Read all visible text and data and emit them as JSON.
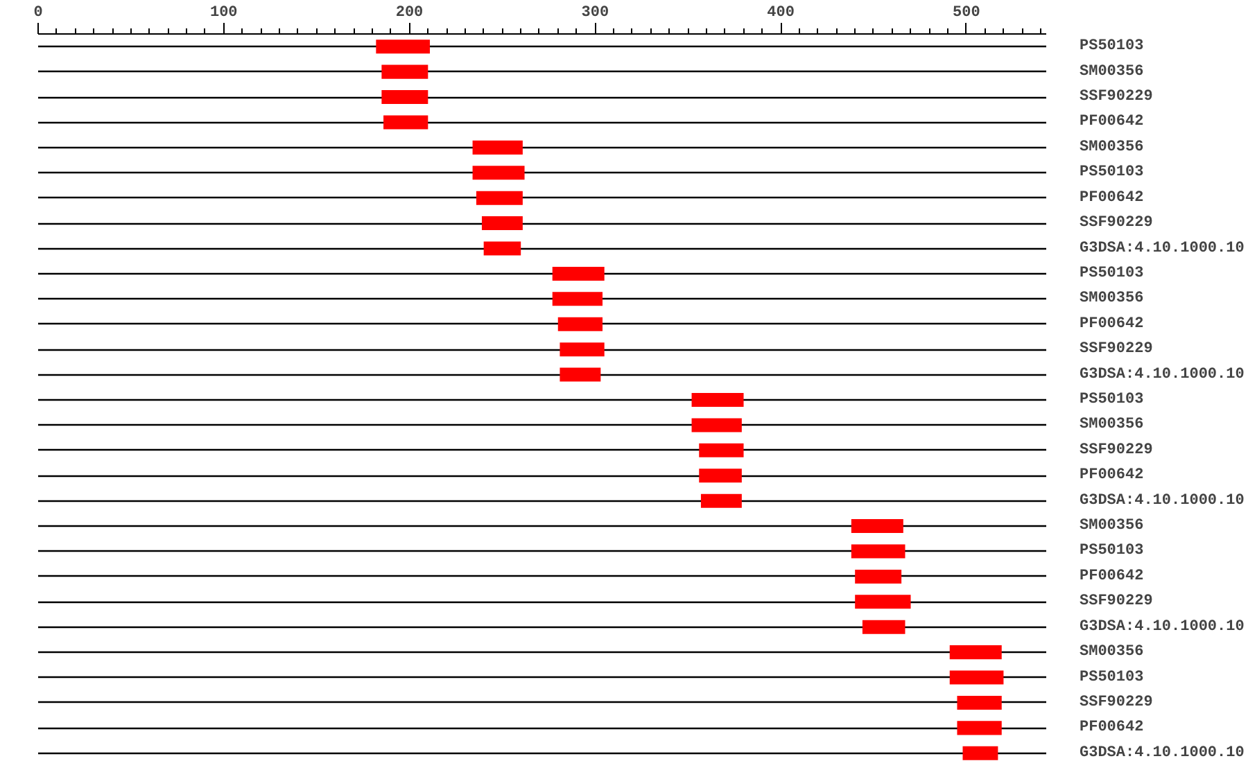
{
  "chart_data": {
    "type": "bar",
    "orientation": "horizontal",
    "grid": "y",
    "categories": [
      "PS50103",
      "SM00356",
      "SSF90229",
      "PF00642",
      "SM00356",
      "PS50103",
      "PF00642",
      "SSF90229",
      "G3DSA:4.10.1000.10",
      "PS50103",
      "SM00356",
      "PF00642",
      "SSF90229",
      "G3DSA:4.10.1000.10",
      "PS50103",
      "SM00356",
      "SSF90229",
      "PF00642",
      "G3DSA:4.10.1000.10",
      "SM00356",
      "PS50103",
      "PF00642",
      "SSF90229",
      "G3DSA:4.10.1000.10",
      "SM00356",
      "PS50103",
      "SSF90229",
      "PF00642",
      "G3DSA:4.10.1000.10"
    ],
    "base": [
      182,
      185,
      185,
      186,
      234,
      234,
      236,
      239,
      240,
      277,
      277,
      280,
      281,
      281,
      352,
      352,
      356,
      356,
      357,
      438,
      438,
      440,
      440,
      444,
      491,
      491,
      495,
      495,
      498
    ],
    "values": [
      29,
      25,
      25,
      24,
      27,
      28,
      25,
      22,
      20,
      28,
      27,
      24,
      24,
      22,
      28,
      27,
      24,
      23,
      22,
      28,
      29,
      25,
      30,
      23,
      28,
      29,
      24,
      24,
      19
    ],
    "color": "#ff0000",
    "xlim": [
      0,
      543
    ],
    "xticks": [
      0,
      {
        "value": 10,
        "label": null
      },
      {
        "value": 20,
        "label": null
      },
      {
        "value": 30,
        "label": null
      },
      {
        "value": 40,
        "label": null
      },
      {
        "value": 50,
        "label": null
      },
      {
        "value": 60,
        "label": null
      },
      {
        "value": 70,
        "label": null
      },
      {
        "value": 80,
        "label": null
      },
      {
        "value": 90,
        "label": null
      },
      100,
      {
        "value": 110,
        "label": null
      },
      {
        "value": 120,
        "label": null
      },
      {
        "value": 130,
        "label": null
      },
      {
        "value": 140,
        "label": null
      },
      {
        "value": 150,
        "label": null
      },
      {
        "value": 160,
        "label": null
      },
      {
        "value": 170,
        "label": null
      },
      {
        "value": 180,
        "label": null
      },
      {
        "value": 190,
        "label": null
      },
      200,
      {
        "value": 210,
        "label": null
      },
      {
        "value": 220,
        "label": null
      },
      {
        "value": 230,
        "label": null
      },
      {
        "value": 240,
        "label": null
      },
      {
        "value": 250,
        "label": null
      },
      {
        "value": 260,
        "label": null
      },
      {
        "value": 270,
        "label": null
      },
      {
        "value": 280,
        "label": null
      },
      {
        "value": 290,
        "label": null
      },
      300,
      {
        "value": 310,
        "label": null
      },
      {
        "value": 320,
        "label": null
      },
      {
        "value": 330,
        "label": null
      },
      {
        "value": 340,
        "label": null
      },
      {
        "value": 350,
        "label": null
      },
      {
        "value": 360,
        "label": null
      },
      {
        "value": 370,
        "label": null
      },
      {
        "value": 380,
        "label": null
      },
      {
        "value": 390,
        "label": null
      },
      400,
      {
        "value": 410,
        "label": null
      },
      {
        "value": 420,
        "label": null
      },
      {
        "value": 430,
        "label": null
      },
      {
        "value": 440,
        "label": null
      },
      {
        "value": 450,
        "label": null
      },
      {
        "value": 460,
        "label": null
      },
      {
        "value": 470,
        "label": null
      },
      {
        "value": 480,
        "label": null
      },
      {
        "value": 490,
        "label": null
      },
      500,
      {
        "value": 510,
        "label": null
      },
      {
        "value": 520,
        "label": null
      },
      {
        "value": 530,
        "label": null
      },
      {
        "value": 540,
        "label": null
      }
    ]
  }
}
